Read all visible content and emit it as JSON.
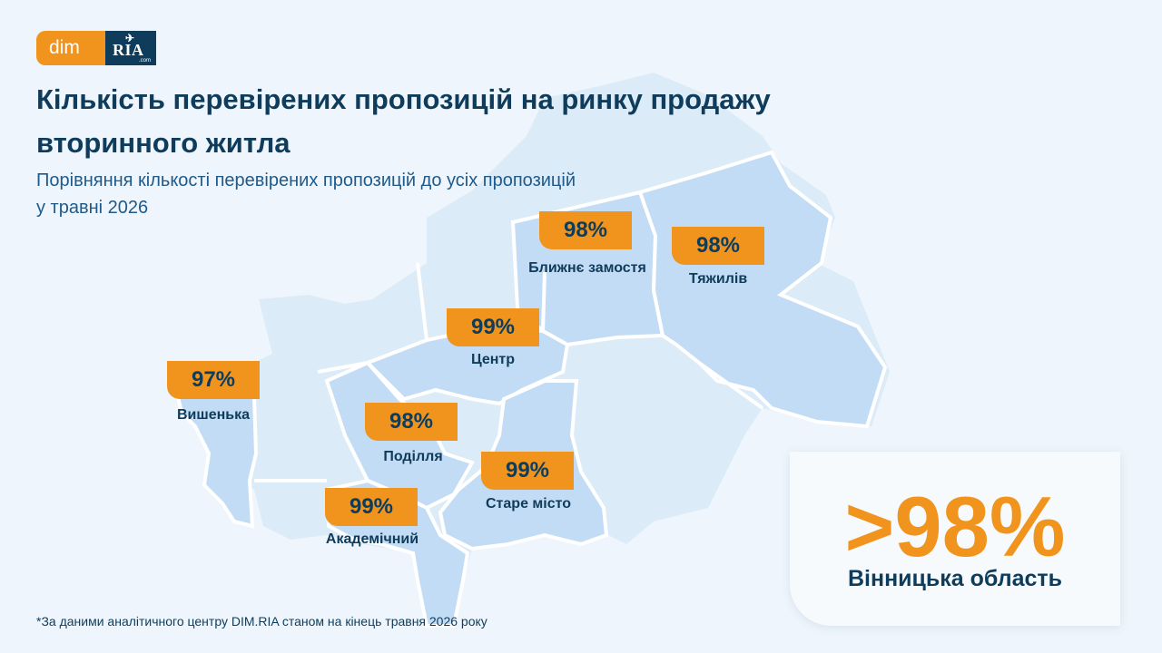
{
  "brand": {
    "dim": "dim",
    "ria": "RIA",
    "ria_com": ".com"
  },
  "header": {
    "title": "Кількість перевірених пропозицій на ринку продажу вторинного житла",
    "subtitle": "Порівняння кількості перевірених пропозицій до усіх пропозицій у травні 2026"
  },
  "districts": [
    {
      "name": "Ближнє замостя",
      "value": "98%"
    },
    {
      "name": "Тяжилів",
      "value": "98%"
    },
    {
      "name": "Центр",
      "value": "99%"
    },
    {
      "name": "Вишенька",
      "value": "97%"
    },
    {
      "name": "Поділля",
      "value": "98%"
    },
    {
      "name": "Старе місто",
      "value": "99%"
    },
    {
      "name": "Академічний",
      "value": "99%"
    }
  ],
  "summary": {
    "value": ">98%",
    "label": "Вінницька область"
  },
  "footnote": "*За даними аналітичного центру DIM.RIA станом на кінець травня 2026 року",
  "colors": {
    "accent": "#f0941d",
    "text_dark": "#0f3c5a",
    "map_light": "#dcebf8",
    "map_highlight": "#c3dcf5",
    "background": "#eef5fc"
  }
}
